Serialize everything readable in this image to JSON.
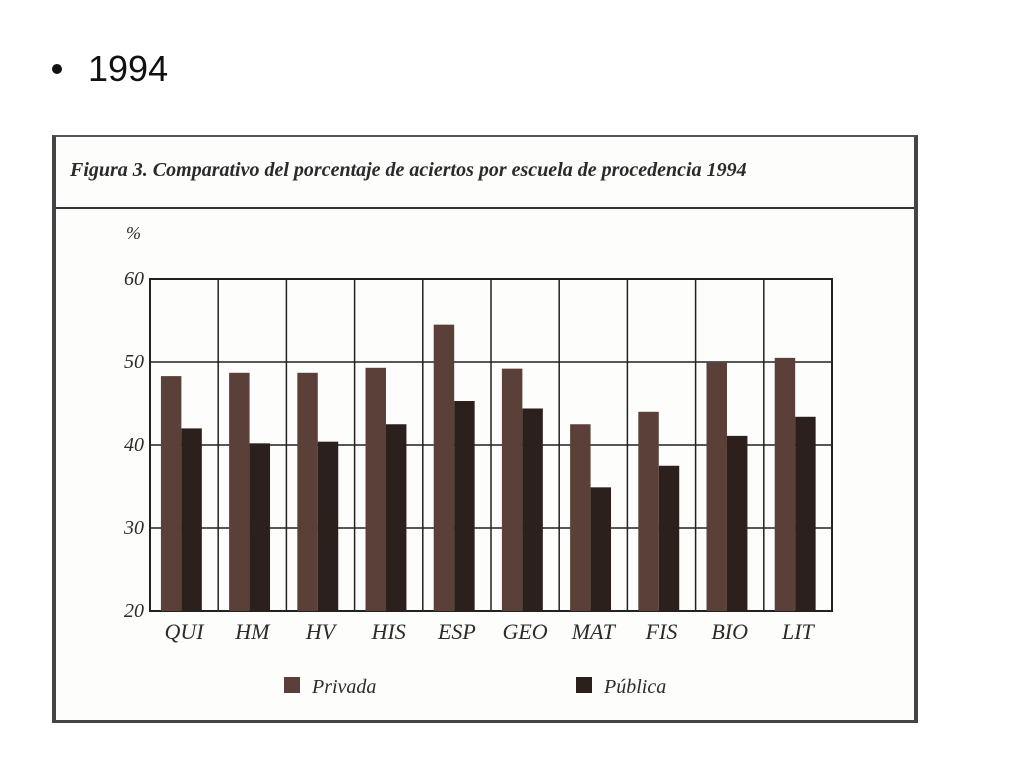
{
  "slide": {
    "bullet_text": "1994"
  },
  "chart_data": {
    "type": "bar",
    "title": "Figura 3. Comparativo del porcentaje de aciertos por escuela de procedencia 1994",
    "ylabel": "%",
    "xlabel": "",
    "ylim": [
      20,
      60
    ],
    "yticks": [
      20,
      30,
      40,
      50,
      60
    ],
    "grid": true,
    "legend_position": "bottom",
    "categories": [
      "QUI",
      "HM",
      "HV",
      "HIS",
      "ESP",
      "GEO",
      "MAT",
      "FIS",
      "BIO",
      "LIT"
    ],
    "series": [
      {
        "name": "Privada",
        "color": "#5a4038",
        "values": [
          48.3,
          48.7,
          48.7,
          49.3,
          54.5,
          49.2,
          42.5,
          44.0,
          49.9,
          50.5
        ]
      },
      {
        "name": "Pública",
        "color": "#2c201c",
        "values": [
          42.0,
          40.2,
          40.4,
          42.5,
          45.3,
          44.4,
          34.9,
          37.5,
          41.1,
          43.4
        ]
      }
    ]
  }
}
